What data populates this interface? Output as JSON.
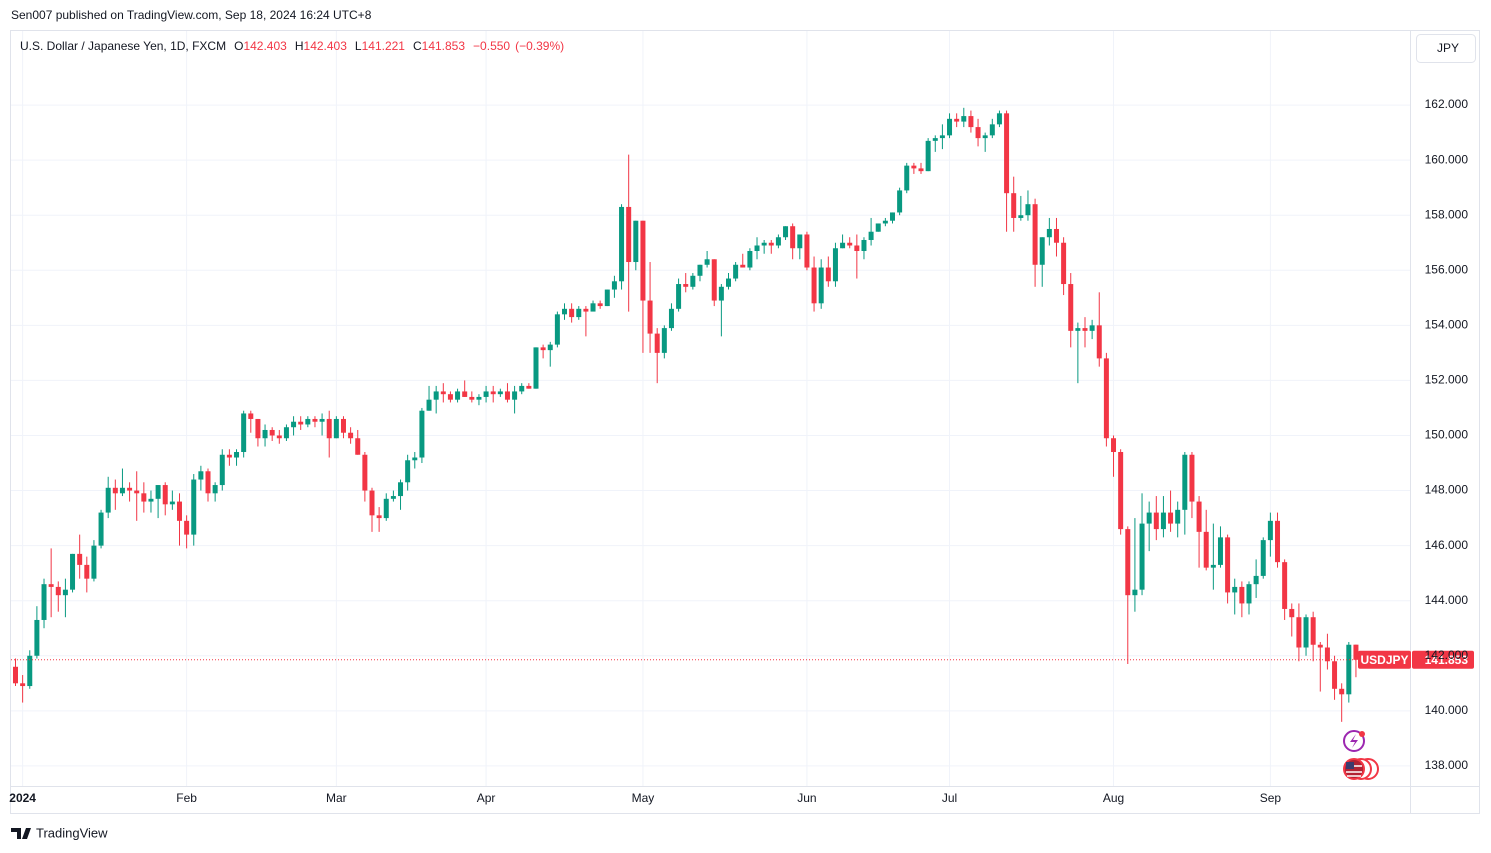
{
  "attribution": "Sen007 published on TradingView.com, Sep 18, 2024 16:24 UTC+8",
  "currency_button": "JPY",
  "footer_brand": "TradingView",
  "chart_data": {
    "type": "candlestick",
    "legend": {
      "title": "U.S. Dollar / Japanese Yen, 1D, FXCM",
      "values": [
        {
          "label": "O",
          "value": 142.403
        },
        {
          "label": "H",
          "value": 142.403
        },
        {
          "label": "L",
          "value": 141.221
        },
        {
          "label": "C",
          "value": 141.853
        }
      ],
      "change": {
        "value": -0.55,
        "label": "−0.550"
      },
      "change_pct": {
        "value": -0.39,
        "label": "(−0.39%)"
      }
    },
    "up_color": "#089981",
    "down_color": "#f23645",
    "last_price": {
      "symbol": "USDJPY",
      "value": 141.853
    },
    "grid": true,
    "ylim": [
      137.27,
      164.69
    ],
    "yticks": [
      {
        "value": 138,
        "label": "138.000"
      },
      {
        "value": 140,
        "label": "140.000"
      },
      {
        "value": 142,
        "label": "142.000"
      },
      {
        "value": 144,
        "label": "144.000"
      },
      {
        "value": 146,
        "label": "146.000"
      },
      {
        "value": 148,
        "label": "148.000"
      },
      {
        "value": 150,
        "label": "150.000"
      },
      {
        "value": 152,
        "label": "152.000"
      },
      {
        "value": 154,
        "label": "154.000"
      },
      {
        "value": 156,
        "label": "156.000"
      },
      {
        "value": 158,
        "label": "158.000"
      },
      {
        "value": 160,
        "label": "160.000"
      },
      {
        "value": 162,
        "label": "162.000"
      }
    ],
    "categories": [
      null,
      "2024",
      null,
      null,
      null,
      null,
      null,
      null,
      null,
      null,
      null,
      null,
      null,
      null,
      null,
      null,
      null,
      null,
      null,
      null,
      null,
      null,
      null,
      null,
      "Feb",
      null,
      null,
      null,
      null,
      null,
      null,
      null,
      null,
      null,
      null,
      null,
      null,
      null,
      null,
      null,
      null,
      null,
      null,
      null,
      null,
      "Mar",
      null,
      null,
      null,
      null,
      null,
      null,
      null,
      null,
      null,
      null,
      null,
      null,
      null,
      null,
      null,
      null,
      null,
      null,
      null,
      null,
      "Apr",
      null,
      null,
      null,
      null,
      null,
      null,
      null,
      null,
      null,
      null,
      null,
      null,
      null,
      null,
      null,
      null,
      null,
      null,
      null,
      null,
      null,
      "May",
      null,
      null,
      null,
      null,
      null,
      null,
      null,
      null,
      null,
      null,
      null,
      null,
      null,
      null,
      null,
      null,
      null,
      null,
      null,
      null,
      null,
      null,
      "Jun",
      null,
      null,
      null,
      null,
      null,
      null,
      null,
      null,
      null,
      null,
      null,
      null,
      null,
      null,
      null,
      null,
      null,
      null,
      null,
      "Jul",
      null,
      null,
      null,
      null,
      null,
      null,
      null,
      null,
      null,
      null,
      null,
      null,
      null,
      null,
      null,
      null,
      null,
      null,
      null,
      null,
      null,
      null,
      "Aug",
      null,
      null,
      null,
      null,
      null,
      null,
      null,
      null,
      null,
      null,
      null,
      null,
      null,
      null,
      null,
      null,
      null,
      null,
      null,
      null,
      null,
      "Sep",
      null,
      null,
      null,
      null,
      null,
      null,
      null,
      null,
      null,
      null,
      null,
      null
    ],
    "open": [
      141.6,
      141.0,
      140.9,
      142.0,
      143.3,
      144.6,
      144.5,
      144.2,
      144.4,
      145.7,
      145.3,
      144.8,
      146.0,
      147.2,
      148.1,
      147.9,
      148.1,
      148.0,
      147.9,
      147.6,
      147.7,
      148.2,
      147.5,
      147.6,
      146.9,
      146.4,
      148.4,
      148.7,
      147.9,
      148.2,
      149.3,
      149.2,
      149.4,
      150.8,
      150.6,
      149.9,
      150.2,
      150.0,
      149.9,
      150.3,
      150.5,
      150.4,
      150.6,
      150.5,
      150.6,
      149.9,
      150.6,
      150.1,
      149.9,
      149.3,
      148.0,
      147.1,
      147.0,
      147.7,
      147.8,
      148.3,
      149.1,
      149.2,
      150.9,
      151.3,
      151.6,
      151.5,
      151.3,
      151.6,
      151.4,
      151.3,
      151.4,
      151.6,
      151.5,
      151.6,
      151.3,
      151.6,
      151.8,
      151.7,
      153.2,
      153.1,
      153.3,
      154.4,
      154.6,
      154.3,
      154.6,
      154.5,
      154.8,
      154.7,
      155.3,
      155.6,
      158.3,
      156.3,
      157.8,
      154.9,
      153.7,
      153.0,
      153.9,
      154.6,
      155.5,
      155.4,
      155.8,
      156.2,
      156.4,
      154.9,
      155.4,
      155.7,
      156.2,
      156.1,
      156.7,
      156.9,
      157.0,
      156.9,
      157.2,
      157.6,
      156.8,
      157.3,
      156.1,
      154.8,
      156.1,
      155.6,
      156.8,
      157.0,
      156.9,
      156.7,
      157.1,
      157.4,
      157.7,
      157.8,
      158.1,
      158.9,
      159.8,
      159.7,
      159.6,
      160.7,
      160.8,
      160.9,
      161.5,
      161.4,
      161.6,
      161.2,
      160.8,
      160.9,
      161.3,
      161.7,
      158.8,
      157.9,
      158.0,
      158.4,
      156.2,
      157.2,
      157.5,
      157.0,
      155.5,
      153.8,
      153.9,
      153.8,
      154.0,
      152.8,
      149.9,
      149.4,
      146.6,
      144.2,
      144.4,
      146.8,
      147.2,
      146.6,
      147.2,
      146.8,
      147.3,
      149.3,
      147.6,
      146.5,
      145.2,
      145.3,
      146.3,
      144.3,
      144.5,
      143.9,
      144.6,
      144.9,
      146.2,
      146.9,
      145.4,
      143.7,
      143.4,
      142.3,
      143.4,
      142.4,
      142.3,
      141.8,
      140.8,
      140.6,
      142.403
    ],
    "high": [
      141.9,
      141.3,
      142.2,
      143.8,
      144.8,
      145.9,
      144.7,
      144.8,
      145.7,
      146.4,
      145.6,
      146.2,
      147.3,
      148.5,
      148.4,
      148.8,
      148.3,
      148.7,
      148.3,
      148.0,
      148.2,
      148.3,
      148.0,
      147.9,
      147.1,
      148.6,
      148.9,
      148.8,
      148.3,
      149.5,
      149.5,
      149.5,
      150.9,
      150.9,
      150.6,
      150.4,
      150.3,
      150.2,
      150.4,
      150.7,
      150.7,
      150.7,
      150.7,
      150.8,
      150.9,
      150.7,
      150.7,
      150.3,
      150.2,
      149.4,
      148.1,
      147.4,
      147.9,
      148.0,
      148.4,
      149.3,
      149.4,
      151.0,
      151.8,
      151.8,
      151.9,
      151.6,
      151.7,
      152.0,
      151.6,
      151.5,
      151.8,
      151.8,
      151.7,
      151.9,
      151.8,
      151.9,
      151.9,
      153.2,
      153.3,
      153.4,
      154.5,
      154.8,
      154.8,
      154.7,
      154.7,
      154.9,
      154.9,
      155.3,
      155.8,
      158.4,
      160.2,
      157.8,
      157.8,
      156.3,
      153.9,
      154.0,
      154.8,
      155.7,
      155.9,
      155.9,
      156.2,
      156.7,
      156.4,
      155.5,
      155.9,
      156.3,
      156.6,
      156.8,
      157.2,
      157.1,
      157.1,
      157.3,
      157.6,
      157.7,
      157.3,
      157.4,
      156.5,
      156.4,
      156.5,
      157.0,
      157.3,
      157.2,
      157.3,
      157.2,
      157.9,
      157.7,
      157.9,
      158.1,
      159.0,
      159.9,
      159.9,
      159.9,
      160.8,
      160.9,
      161.3,
      161.7,
      161.7,
      161.9,
      161.8,
      161.5,
      161.0,
      161.5,
      161.8,
      161.8,
      159.4,
      158.7,
      158.9,
      158.6,
      157.2,
      157.9,
      157.9,
      157.2,
      155.9,
      154.1,
      154.3,
      154.2,
      155.2,
      153.0,
      150.0,
      149.5,
      146.7,
      147.0,
      147.9,
      147.6,
      147.8,
      147.8,
      148.0,
      147.6,
      149.4,
      149.4,
      147.8,
      147.3,
      146.8,
      146.7,
      146.4,
      144.8,
      144.7,
      144.7,
      145.5,
      146.3,
      147.2,
      147.2,
      145.5,
      143.9,
      143.9,
      143.5,
      143.6,
      142.5,
      142.8,
      142.0,
      141.0,
      142.5,
      142.403
    ],
    "low": [
      140.9,
      140.3,
      140.8,
      141.9,
      143.0,
      143.4,
      143.6,
      143.4,
      144.3,
      144.8,
      144.3,
      144.7,
      145.9,
      147.0,
      147.3,
      147.8,
      147.6,
      146.9,
      147.2,
      147.2,
      147.0,
      147.1,
      147.3,
      146.0,
      145.9,
      146.0,
      148.0,
      147.6,
      147.6,
      148.0,
      148.9,
      148.9,
      149.2,
      150.1,
      149.6,
      149.6,
      149.8,
      149.7,
      149.8,
      150.0,
      150.2,
      150.3,
      150.3,
      150.0,
      149.2,
      149.9,
      149.9,
      149.7,
      149.3,
      147.6,
      146.5,
      146.5,
      146.9,
      147.6,
      147.3,
      148.0,
      148.8,
      149.0,
      150.9,
      150.8,
      151.2,
      151.2,
      151.2,
      151.4,
      151.2,
      151.1,
      151.2,
      151.2,
      151.4,
      151.2,
      150.8,
      151.5,
      151.7,
      151.7,
      152.8,
      152.5,
      153.2,
      154.2,
      154.1,
      154.2,
      153.6,
      154.6,
      154.6,
      154.7,
      155.0,
      155.3,
      154.5,
      156.0,
      153.0,
      153.0,
      151.9,
      152.8,
      153.8,
      154.5,
      155.2,
      155.3,
      155.6,
      156.1,
      154.7,
      153.6,
      155.3,
      155.6,
      156.1,
      156.0,
      156.4,
      156.6,
      156.6,
      156.8,
      157.1,
      156.4,
      156.4,
      156.0,
      154.5,
      154.6,
      155.4,
      155.4,
      156.8,
      156.8,
      155.7,
      156.4,
      156.9,
      157.4,
      157.6,
      157.7,
      158.0,
      158.8,
      159.5,
      159.5,
      159.6,
      160.3,
      160.4,
      160.8,
      161.2,
      161.2,
      161.0,
      160.5,
      160.3,
      160.8,
      161.2,
      157.4,
      157.4,
      157.8,
      157.8,
      155.4,
      155.4,
      156.9,
      156.5,
      155.1,
      153.2,
      151.9,
      153.2,
      153.5,
      152.5,
      149.6,
      148.5,
      146.4,
      141.7,
      143.6,
      144.2,
      145.8,
      146.2,
      146.3,
      146.5,
      146.3,
      146.4,
      147.0,
      145.2,
      145.1,
      144.4,
      145.2,
      143.9,
      143.5,
      143.4,
      143.5,
      144.1,
      144.8,
      145.6,
      145.2,
      143.3,
      142.7,
      141.8,
      142.0,
      141.8,
      140.7,
      141.5,
      140.4,
      139.6,
      140.3,
      141.221
    ],
    "close": [
      141.0,
      140.9,
      142.0,
      143.3,
      144.6,
      144.5,
      144.2,
      144.4,
      145.7,
      145.3,
      144.8,
      146.0,
      147.2,
      148.1,
      147.9,
      148.1,
      148.0,
      147.9,
      147.6,
      147.7,
      148.2,
      147.5,
      147.6,
      146.9,
      146.4,
      148.4,
      148.7,
      147.9,
      148.2,
      149.3,
      149.2,
      149.4,
      150.8,
      150.6,
      149.9,
      150.2,
      150.0,
      149.9,
      150.3,
      150.5,
      150.4,
      150.6,
      150.5,
      150.6,
      149.9,
      150.6,
      150.1,
      149.9,
      149.3,
      148.0,
      147.1,
      147.0,
      147.7,
      147.8,
      148.3,
      149.1,
      149.2,
      150.9,
      151.3,
      151.6,
      151.5,
      151.3,
      151.6,
      151.4,
      151.3,
      151.4,
      151.6,
      151.5,
      151.6,
      151.3,
      151.6,
      151.8,
      151.7,
      153.2,
      153.1,
      153.3,
      154.4,
      154.6,
      154.3,
      154.6,
      154.5,
      154.8,
      154.7,
      155.3,
      155.6,
      158.3,
      156.3,
      157.8,
      154.9,
      153.7,
      153.0,
      153.9,
      154.6,
      155.5,
      155.4,
      155.8,
      156.2,
      156.4,
      154.9,
      155.4,
      155.7,
      156.2,
      156.1,
      156.7,
      156.9,
      157.0,
      156.9,
      157.2,
      157.6,
      156.8,
      157.3,
      156.1,
      154.8,
      156.1,
      155.6,
      156.8,
      157.0,
      156.9,
      156.7,
      157.1,
      157.4,
      157.7,
      157.8,
      158.1,
      158.9,
      159.8,
      159.7,
      159.6,
      160.7,
      160.8,
      160.9,
      161.5,
      161.4,
      161.6,
      161.2,
      160.8,
      160.9,
      161.3,
      161.7,
      158.8,
      157.9,
      158.0,
      158.4,
      156.2,
      157.2,
      157.5,
      157.0,
      155.5,
      153.8,
      153.9,
      153.8,
      154.0,
      152.8,
      149.9,
      149.4,
      146.6,
      144.2,
      144.4,
      146.8,
      147.2,
      146.6,
      147.2,
      146.8,
      147.3,
      149.3,
      147.6,
      146.5,
      145.2,
      145.3,
      146.3,
      144.3,
      144.5,
      143.9,
      144.6,
      144.9,
      146.2,
      146.9,
      145.4,
      143.7,
      143.4,
      142.3,
      143.4,
      142.4,
      142.3,
      141.8,
      140.8,
      140.6,
      142.4,
      141.853
    ]
  }
}
